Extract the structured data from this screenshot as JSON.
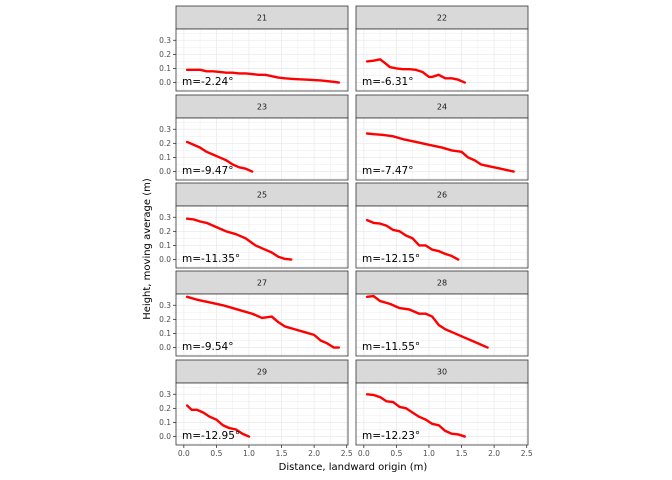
{
  "chart_data": {
    "type": "line",
    "xlabel": "Distance, landward origin (m)",
    "ylabel": "Height, moving average (m)",
    "xlim": [
      -0.12,
      2.52
    ],
    "ylim": [
      -0.06,
      0.38
    ],
    "x_ticks": [
      "0.0",
      "0.5",
      "1.0",
      "1.5",
      "2.0",
      "2.5"
    ],
    "y_ticks": [
      "0.0",
      "0.1",
      "0.2",
      "0.3"
    ],
    "grid": true,
    "line_color": "#ff0000",
    "strip_fill": "#d9d9d9",
    "panels": [
      {
        "label": "21",
        "annotation": "m=-2.24°",
        "x": [
          0.05,
          0.15,
          0.25,
          0.35,
          0.45,
          0.55,
          0.65,
          0.75,
          0.85,
          0.95,
          1.05,
          1.15,
          1.25,
          1.35,
          1.45,
          1.55,
          1.7,
          1.9,
          2.1,
          2.3,
          2.38
        ],
        "y": [
          0.09,
          0.09,
          0.09,
          0.08,
          0.08,
          0.075,
          0.07,
          0.07,
          0.065,
          0.065,
          0.06,
          0.055,
          0.055,
          0.045,
          0.035,
          0.03,
          0.025,
          0.02,
          0.015,
          0.005,
          0.0
        ]
      },
      {
        "label": "22",
        "annotation": "m=-6.31°",
        "x": [
          0.05,
          0.15,
          0.25,
          0.32,
          0.4,
          0.5,
          0.6,
          0.7,
          0.8,
          0.9,
          1.0,
          1.05,
          1.15,
          1.25,
          1.35,
          1.45,
          1.55
        ],
        "y": [
          0.15,
          0.155,
          0.165,
          0.14,
          0.11,
          0.1,
          0.095,
          0.095,
          0.09,
          0.075,
          0.04,
          0.04,
          0.055,
          0.03,
          0.03,
          0.02,
          0.0
        ]
      },
      {
        "label": "23",
        "annotation": "m=-9.47°",
        "x": [
          0.05,
          0.15,
          0.25,
          0.35,
          0.45,
          0.55,
          0.65,
          0.75,
          0.85,
          0.95,
          1.05
        ],
        "y": [
          0.21,
          0.19,
          0.17,
          0.14,
          0.12,
          0.1,
          0.08,
          0.05,
          0.03,
          0.02,
          0.0
        ]
      },
      {
        "label": "24",
        "annotation": "m=-7.47°",
        "x": [
          0.05,
          0.15,
          0.3,
          0.45,
          0.6,
          0.8,
          1.0,
          1.2,
          1.35,
          1.5,
          1.6,
          1.7,
          1.8,
          1.9,
          2.0,
          2.1,
          2.2,
          2.3
        ],
        "y": [
          0.27,
          0.265,
          0.26,
          0.25,
          0.23,
          0.21,
          0.19,
          0.17,
          0.15,
          0.14,
          0.1,
          0.08,
          0.05,
          0.04,
          0.03,
          0.02,
          0.01,
          0.0
        ]
      },
      {
        "label": "25",
        "annotation": "m=-11.35°",
        "x": [
          0.05,
          0.15,
          0.25,
          0.35,
          0.5,
          0.65,
          0.8,
          0.95,
          1.1,
          1.25,
          1.35,
          1.45,
          1.55,
          1.65
        ],
        "y": [
          0.29,
          0.285,
          0.27,
          0.26,
          0.23,
          0.2,
          0.18,
          0.15,
          0.1,
          0.07,
          0.05,
          0.02,
          0.005,
          0.0
        ]
      },
      {
        "label": "26",
        "annotation": "m=-12.15°",
        "x": [
          0.05,
          0.15,
          0.25,
          0.35,
          0.45,
          0.55,
          0.65,
          0.75,
          0.85,
          0.95,
          1.05,
          1.15,
          1.25,
          1.35,
          1.45
        ],
        "y": [
          0.28,
          0.26,
          0.255,
          0.24,
          0.21,
          0.2,
          0.17,
          0.15,
          0.1,
          0.1,
          0.07,
          0.06,
          0.04,
          0.025,
          0.0
        ]
      },
      {
        "label": "27",
        "annotation": "m=-9.54°",
        "x": [
          0.05,
          0.2,
          0.4,
          0.6,
          0.75,
          0.9,
          1.05,
          1.2,
          1.35,
          1.45,
          1.55,
          1.7,
          1.85,
          2.0,
          2.1,
          2.2,
          2.3,
          2.38
        ],
        "y": [
          0.36,
          0.34,
          0.32,
          0.3,
          0.28,
          0.26,
          0.24,
          0.21,
          0.22,
          0.18,
          0.15,
          0.13,
          0.11,
          0.09,
          0.05,
          0.03,
          0.0,
          0.0
        ]
      },
      {
        "label": "28",
        "annotation": "m=-11.55°",
        "x": [
          0.05,
          0.15,
          0.25,
          0.4,
          0.55,
          0.7,
          0.85,
          0.95,
          1.05,
          1.15,
          1.25,
          1.4,
          1.55,
          1.7,
          1.9
        ],
        "y": [
          0.36,
          0.365,
          0.33,
          0.31,
          0.28,
          0.27,
          0.24,
          0.24,
          0.22,
          0.16,
          0.13,
          0.1,
          0.07,
          0.04,
          0.0
        ]
      },
      {
        "label": "29",
        "annotation": "m=-12.95°",
        "x": [
          0.05,
          0.12,
          0.2,
          0.3,
          0.4,
          0.5,
          0.6,
          0.7,
          0.8,
          0.9,
          1.0
        ],
        "y": [
          0.22,
          0.19,
          0.19,
          0.17,
          0.14,
          0.12,
          0.08,
          0.06,
          0.05,
          0.02,
          0.0
        ]
      },
      {
        "label": "30",
        "annotation": "m=-12.23°",
        "x": [
          0.05,
          0.15,
          0.25,
          0.35,
          0.45,
          0.55,
          0.65,
          0.75,
          0.85,
          0.95,
          1.05,
          1.15,
          1.25,
          1.35,
          1.45,
          1.55
        ],
        "y": [
          0.3,
          0.295,
          0.28,
          0.25,
          0.245,
          0.21,
          0.2,
          0.17,
          0.14,
          0.12,
          0.09,
          0.08,
          0.04,
          0.02,
          0.015,
          0.0
        ]
      }
    ]
  }
}
